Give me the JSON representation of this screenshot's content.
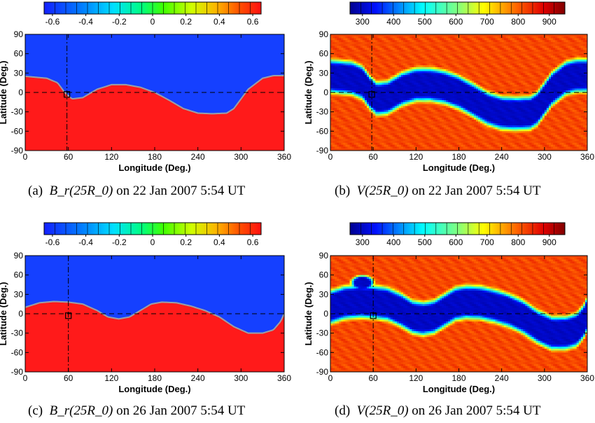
{
  "chart_data": [
    {
      "type": "heatmap",
      "panel_label": "(a)",
      "variable": "B_r(25R_0)",
      "caption_date": "on 22 Jan 2007 5:54 UT",
      "xlabel": "Longitude (Deg.)",
      "ylabel": "Latitude (Deg.)",
      "xlim": [
        0,
        360
      ],
      "ylim": [
        -90,
        90
      ],
      "xticks": [
        0,
        60,
        120,
        180,
        240,
        300,
        360
      ],
      "yticks": [
        90,
        60,
        30,
        0,
        -30,
        -60,
        -90
      ],
      "colorbar": {
        "min": -0.65,
        "max": 0.65,
        "ticks": [
          "-0.6",
          "-0.4",
          "-0.2",
          "0",
          "0.2",
          "0.4",
          "0.6"
        ],
        "tick_values": [
          -0.6,
          -0.4,
          -0.2,
          0,
          0.2,
          0.4,
          0.6
        ],
        "colormap": "rainbow"
      },
      "field": {
        "north_value": -0.65,
        "south_value": 0.65,
        "north_color": "#1540ff",
        "south_color": "#ff1a1a"
      },
      "neutral_line": {
        "lon": [
          0,
          30,
          45,
          55,
          65,
          80,
          100,
          120,
          140,
          160,
          180,
          200,
          220,
          240,
          260,
          280,
          290,
          300,
          310,
          330,
          345,
          360
        ],
        "lat": [
          25,
          22,
          15,
          0,
          -10,
          -8,
          5,
          12,
          12,
          8,
          0,
          -12,
          -25,
          -32,
          -33,
          -32,
          -25,
          -10,
          5,
          22,
          26,
          26
        ]
      },
      "marker": {
        "lon": 58,
        "lat": -3
      }
    },
    {
      "type": "heatmap",
      "panel_label": "(b)",
      "variable": "V(25R_0)",
      "caption_date": "on 22 Jan 2007 5:54 UT",
      "xlabel": "Longitude (Deg.)",
      "ylabel": "Latitude (Deg.)",
      "xlim": [
        0,
        360
      ],
      "ylim": [
        -90,
        90
      ],
      "xticks": [
        0,
        60,
        120,
        180,
        240,
        300,
        360
      ],
      "yticks": [
        90,
        60,
        30,
        0,
        -30,
        -60,
        -90
      ],
      "colorbar": {
        "min": 260,
        "max": 950,
        "ticks": [
          "300",
          "400",
          "500",
          "600",
          "700",
          "800",
          "900"
        ],
        "tick_values": [
          300,
          400,
          500,
          600,
          700,
          800,
          900
        ],
        "colormap": "jet"
      },
      "slow_wind_band": {
        "lon": [
          0,
          30,
          45,
          55,
          65,
          80,
          100,
          120,
          140,
          160,
          180,
          200,
          220,
          240,
          260,
          280,
          290,
          300,
          310,
          330,
          345,
          360
        ],
        "lat": [
          25,
          22,
          15,
          0,
          -10,
          -8,
          5,
          12,
          12,
          8,
          0,
          -12,
          -25,
          -32,
          -33,
          -32,
          -25,
          -10,
          5,
          22,
          26,
          26
        ],
        "half_width_deg": 30,
        "slow_value": 300,
        "fast_value": 820
      },
      "marker": {
        "lon": 58,
        "lat": -3
      }
    },
    {
      "type": "heatmap",
      "panel_label": "(c)",
      "variable": "B_r(25R_0)",
      "caption_date": "on 26 Jan 2007 5:54 UT",
      "xlabel": "Longitude (Deg.)",
      "ylabel": "Latitude (Deg.)",
      "xlim": [
        0,
        360
      ],
      "ylim": [
        -90,
        90
      ],
      "xticks": [
        0,
        60,
        120,
        180,
        240,
        300,
        360
      ],
      "yticks": [
        90,
        60,
        30,
        0,
        -30,
        -60,
        -90
      ],
      "colorbar": {
        "min": -0.65,
        "max": 0.65,
        "ticks": [
          "-0.6",
          "-0.4",
          "-0.2",
          "0",
          "0.2",
          "0.4",
          "0.6"
        ],
        "tick_values": [
          -0.6,
          -0.4,
          -0.2,
          0,
          0.2,
          0.4,
          0.6
        ],
        "colormap": "rainbow"
      },
      "field": {
        "north_value": -0.65,
        "south_value": 0.65,
        "north_color": "#1540ff",
        "south_color": "#ff1a1a"
      },
      "neutral_line": {
        "lon": [
          0,
          20,
          40,
          60,
          80,
          100,
          115,
          130,
          145,
          160,
          175,
          190,
          210,
          230,
          250,
          270,
          290,
          310,
          330,
          345,
          355,
          360
        ],
        "lat": [
          10,
          17,
          19,
          18,
          15,
          5,
          -5,
          -8,
          -5,
          5,
          15,
          18,
          17,
          12,
          5,
          -5,
          -20,
          -30,
          -30,
          -25,
          -12,
          0
        ]
      },
      "marker": {
        "lon": 60,
        "lat": -3
      }
    },
    {
      "type": "heatmap",
      "panel_label": "(d)",
      "variable": "V(25R_0)",
      "caption_date": "on 26 Jan 2007 5:54 UT",
      "xlabel": "Longitude (Deg.)",
      "ylabel": "Latitude (Deg.)",
      "xlim": [
        0,
        360
      ],
      "ylim": [
        -90,
        90
      ],
      "xticks": [
        0,
        60,
        120,
        180,
        240,
        300,
        360
      ],
      "yticks": [
        90,
        60,
        30,
        0,
        -30,
        -60,
        -90
      ],
      "colorbar": {
        "min": 260,
        "max": 950,
        "ticks": [
          "300",
          "400",
          "500",
          "600",
          "700",
          "800",
          "900"
        ],
        "tick_values": [
          300,
          400,
          500,
          600,
          700,
          800,
          900
        ],
        "colormap": "jet"
      },
      "slow_wind_band": {
        "lon": [
          0,
          20,
          40,
          60,
          80,
          100,
          115,
          130,
          145,
          160,
          175,
          190,
          210,
          230,
          250,
          270,
          290,
          310,
          330,
          345,
          355,
          360
        ],
        "lat": [
          10,
          17,
          19,
          18,
          15,
          5,
          -5,
          -8,
          -5,
          5,
          15,
          18,
          17,
          12,
          5,
          -5,
          -20,
          -30,
          -30,
          -25,
          -12,
          0
        ],
        "half_width_deg": 30,
        "slow_value": 300,
        "fast_value": 820
      },
      "slow_wind_blob": {
        "lon": 45,
        "lat": 48
      },
      "marker": {
        "lon": 60,
        "lat": -3
      }
    }
  ]
}
